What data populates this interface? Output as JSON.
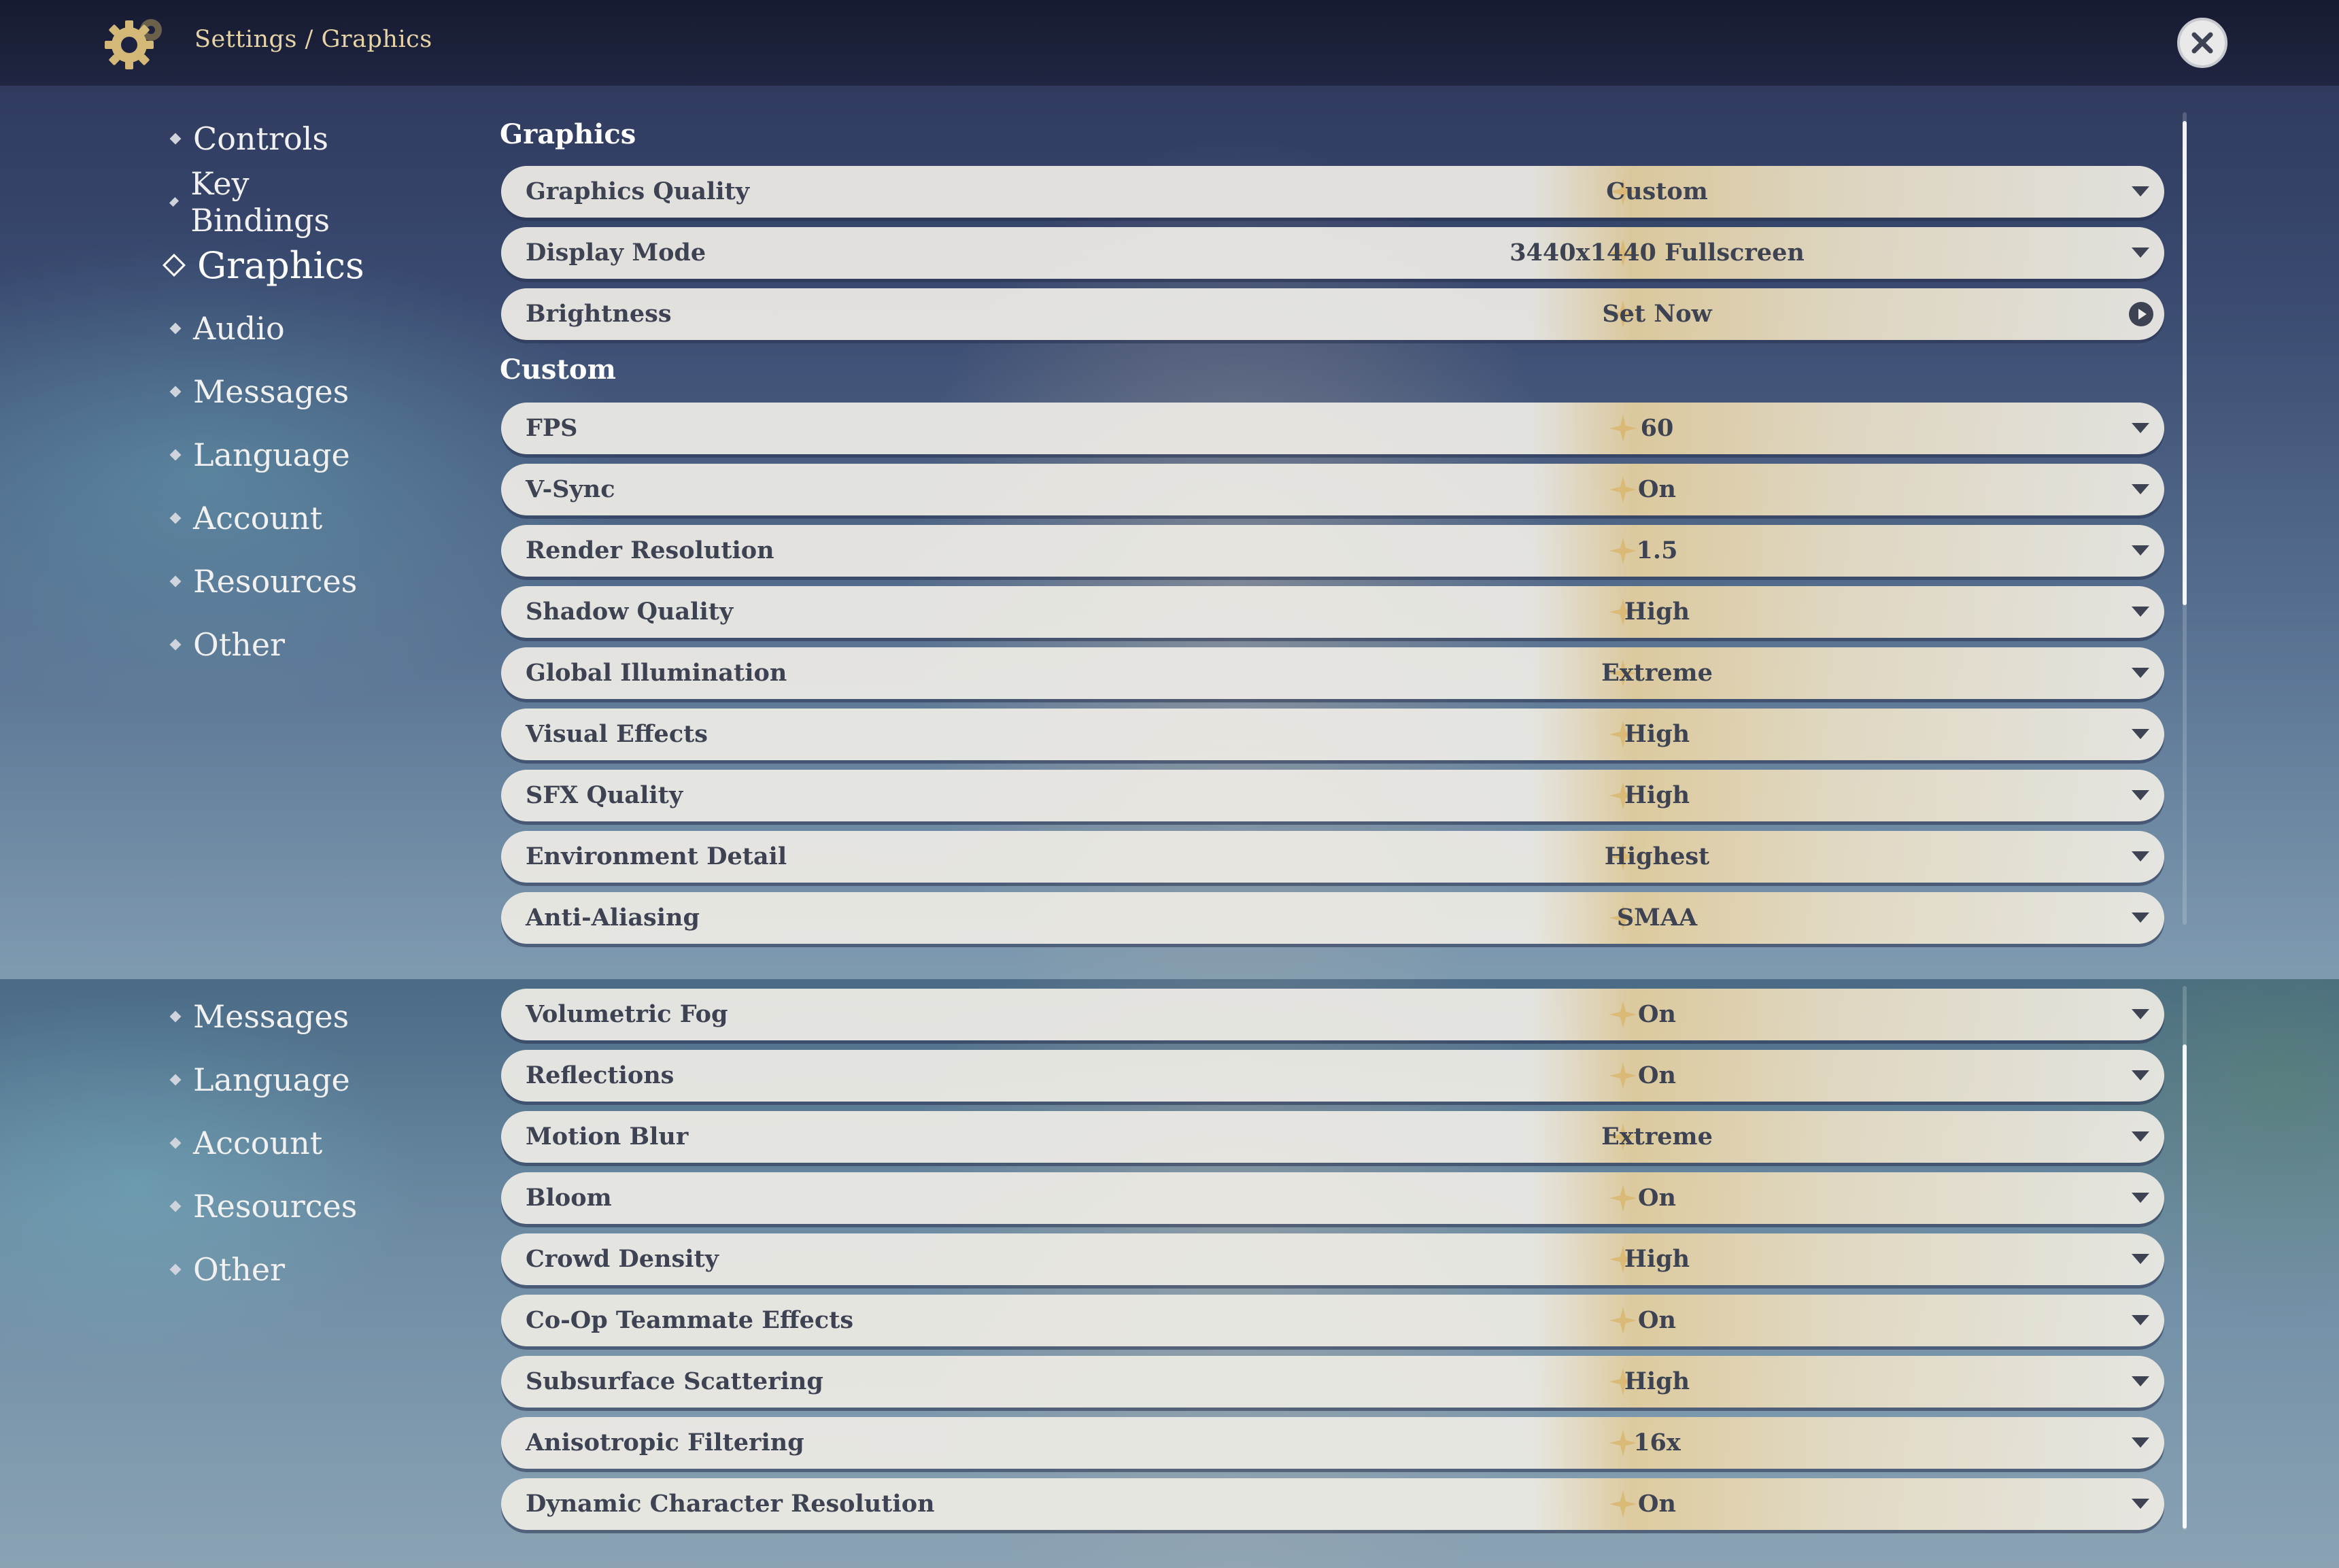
{
  "header": {
    "breadcrumb": "Settings / Graphics",
    "settings_icon": "gear-icon",
    "close_icon": "close-icon"
  },
  "colors": {
    "accent_gold": "#e6d3a6",
    "row_text": "#3d4352",
    "topbar": "#1c2140"
  },
  "sidebar_top": {
    "items": [
      {
        "label": "Controls"
      },
      {
        "label": "Key Bindings"
      },
      {
        "label": "Graphics",
        "active": true
      },
      {
        "label": "Audio"
      },
      {
        "label": "Messages"
      },
      {
        "label": "Language"
      },
      {
        "label": "Account"
      },
      {
        "label": "Resources"
      },
      {
        "label": "Other"
      }
    ]
  },
  "sidebar_bottom": {
    "items": [
      {
        "label": "Messages"
      },
      {
        "label": "Language"
      },
      {
        "label": "Account"
      },
      {
        "label": "Resources"
      },
      {
        "label": "Other"
      }
    ]
  },
  "sections": {
    "graphics_title": "Graphics",
    "custom_title": "Custom"
  },
  "settings_top": [
    {
      "label": "Graphics Quality",
      "value": "Custom",
      "control": "dropdown"
    },
    {
      "label": "Display Mode",
      "value": "3440x1440 Fullscreen",
      "control": "dropdown"
    },
    {
      "label": "Brightness",
      "value": "Set Now",
      "control": "button"
    },
    {
      "label": "FPS",
      "value": "60",
      "control": "dropdown"
    },
    {
      "label": "V-Sync",
      "value": "On",
      "control": "dropdown"
    },
    {
      "label": "Render Resolution",
      "value": "1.5",
      "control": "dropdown"
    },
    {
      "label": "Shadow Quality",
      "value": "High",
      "control": "dropdown"
    },
    {
      "label": "Global Illumination",
      "value": "Extreme",
      "control": "dropdown"
    },
    {
      "label": "Visual Effects",
      "value": "High",
      "control": "dropdown"
    },
    {
      "label": "SFX Quality",
      "value": "High",
      "control": "dropdown"
    },
    {
      "label": "Environment Detail",
      "value": "Highest",
      "control": "dropdown"
    },
    {
      "label": "Anti-Aliasing",
      "value": "SMAA",
      "control": "dropdown"
    }
  ],
  "settings_bottom": [
    {
      "label": "Volumetric Fog",
      "value": "On",
      "control": "dropdown"
    },
    {
      "label": "Reflections",
      "value": "On",
      "control": "dropdown"
    },
    {
      "label": "Motion Blur",
      "value": "Extreme",
      "control": "dropdown"
    },
    {
      "label": "Bloom",
      "value": "On",
      "control": "dropdown"
    },
    {
      "label": "Crowd Density",
      "value": "High",
      "control": "dropdown"
    },
    {
      "label": "Co-Op Teammate Effects",
      "value": "On",
      "control": "dropdown"
    },
    {
      "label": "Subsurface Scattering",
      "value": "High",
      "control": "dropdown"
    },
    {
      "label": "Anisotropic Filtering",
      "value": "16x",
      "control": "dropdown"
    },
    {
      "label": "Dynamic Character Resolution",
      "value": "On",
      "control": "dropdown"
    }
  ]
}
